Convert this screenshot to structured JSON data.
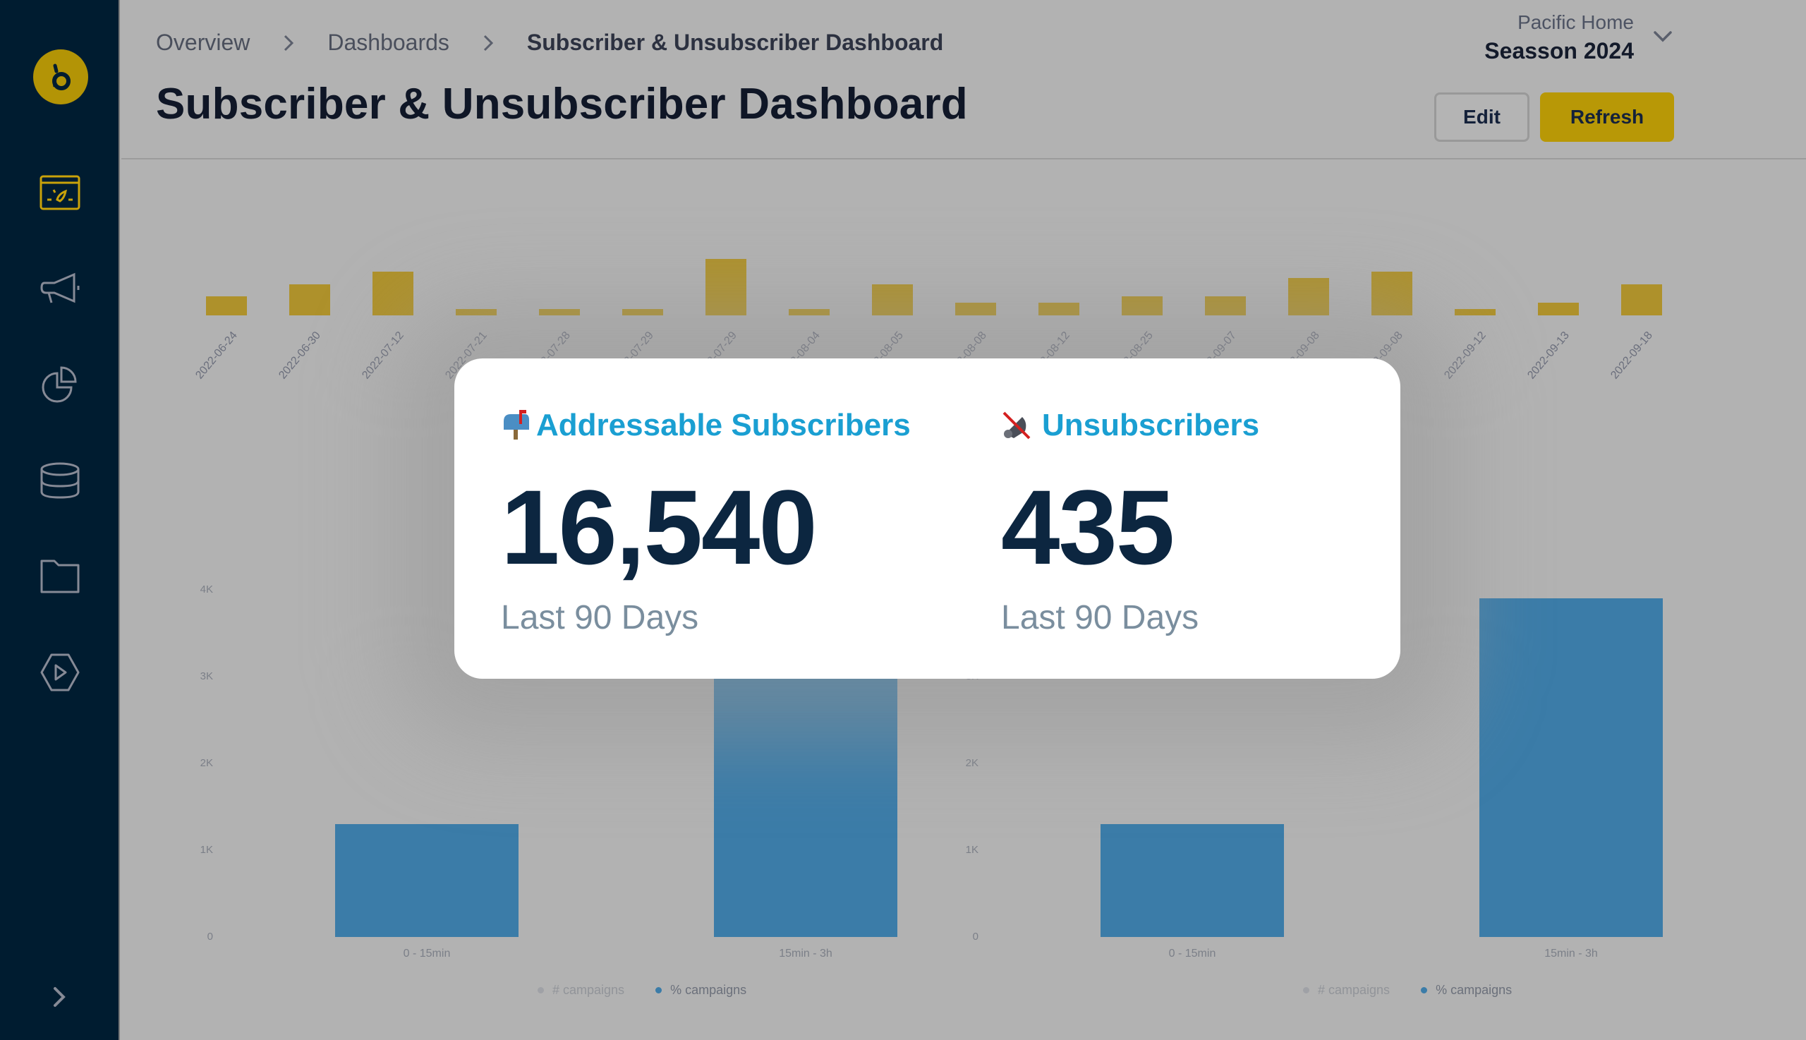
{
  "sidebar": {
    "logo_glyph": "b",
    "items": [
      {
        "name": "dashboards",
        "icon": "dashboard-icon",
        "active": true
      },
      {
        "name": "campaigns",
        "icon": "megaphone-icon",
        "active": false
      },
      {
        "name": "analytics",
        "icon": "pie-chart-icon",
        "active": false
      },
      {
        "name": "data",
        "icon": "database-icon",
        "active": false
      },
      {
        "name": "files",
        "icon": "folder-icon",
        "active": false
      },
      {
        "name": "media",
        "icon": "play-icon",
        "active": false
      }
    ],
    "expand_icon": "chevron-right-icon"
  },
  "header": {
    "breadcrumb": [
      "Overview",
      "Dashboards",
      "Subscriber & Unsubscriber Dashboard"
    ],
    "title": "Subscriber & Unsubscriber Dashboard",
    "org_name": "Pacific Home",
    "season": "Seasson 2024",
    "edit_label": "Edit",
    "refresh_label": "Refresh"
  },
  "colors": {
    "sidebar_bg": "#001c30",
    "accent_yellow": "#b89806",
    "metric_label": "#1a9fd2",
    "metric_value": "#0c2640",
    "bar_blue": "#3b7ca8",
    "bar_gold": "#ae912b"
  },
  "card": {
    "metrics": [
      {
        "emoji": "📫",
        "label": "Addressable Subscribers",
        "value": "16,540",
        "period": "Last 90 Days"
      },
      {
        "emoji": "🔇",
        "label": "Unsubscribers",
        "value": "435",
        "period": "Last 90 Days"
      }
    ]
  },
  "chart_data": [
    {
      "type": "bar",
      "title": "",
      "categories": [
        "2022-06-24",
        "2022-06-30",
        "2022-07-12",
        "2022-07-21",
        "2022-07-28",
        "2022-07-29",
        "2022-07-29",
        "2022-08-04",
        "2022-08-05",
        "2022-08-08",
        "2022-08-12",
        "2022-08-25",
        "2022-09-07",
        "2022-09-08",
        "2022-09-08",
        "2022-09-12",
        "2022-09-13",
        "2022-09-18"
      ],
      "values": [
        3,
        5,
        7,
        1,
        1,
        1,
        9,
        1,
        5,
        2,
        2,
        3,
        3,
        6,
        7,
        1,
        2,
        5
      ],
      "xlabel": "",
      "ylabel": "",
      "color": "#ae912b"
    },
    {
      "type": "bar",
      "title": "",
      "categories": [
        "0 - 15min",
        "15min - 3h"
      ],
      "series": [
        {
          "name": "% campaigns",
          "values": [
            1300,
            3900
          ]
        }
      ],
      "legend": [
        "# campaigns",
        "% campaigns"
      ],
      "yticks": [
        "0",
        "1K",
        "2K",
        "3K",
        "4K"
      ],
      "ylim": [
        0,
        4000
      ],
      "color": "#3b7ca8"
    },
    {
      "type": "bar",
      "title": "",
      "categories": [
        "0 - 15min",
        "15min - 3h"
      ],
      "series": [
        {
          "name": "% campaigns",
          "values": [
            1300,
            3900
          ]
        }
      ],
      "legend": [
        "# campaigns",
        "% campaigns"
      ],
      "yticks": [
        "0",
        "1K",
        "2K",
        "3K",
        "4K"
      ],
      "ylim": [
        0,
        4000
      ],
      "color": "#3b7ca8"
    }
  ]
}
